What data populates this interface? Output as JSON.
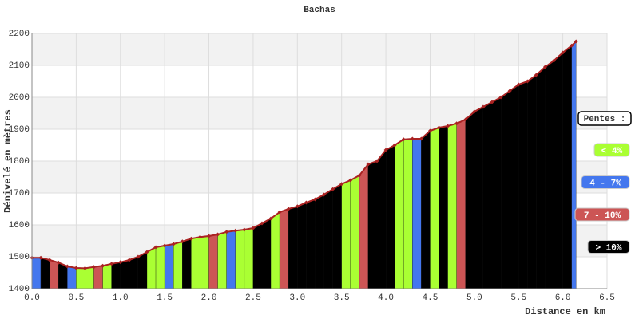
{
  "chart_data": {
    "type": "area-profile",
    "title": "Bachas",
    "x_label": "Distance en km",
    "y_label": "Dénivelé en mètres",
    "x": [
      0.0,
      0.1,
      0.2,
      0.3,
      0.4,
      0.5,
      0.6,
      0.7,
      0.8,
      0.9,
      1.0,
      1.1,
      1.2,
      1.3,
      1.4,
      1.5,
      1.6,
      1.7,
      1.8,
      1.9,
      2.0,
      2.1,
      2.2,
      2.3,
      2.4,
      2.5,
      2.6,
      2.7,
      2.8,
      2.9,
      3.0,
      3.1,
      3.2,
      3.3,
      3.4,
      3.5,
      3.6,
      3.7,
      3.8,
      3.9,
      4.0,
      4.1,
      4.2,
      4.3,
      4.4,
      4.5,
      4.6,
      4.7,
      4.8,
      4.9,
      5.0,
      5.1,
      5.2,
      5.3,
      5.4,
      5.5,
      5.6,
      5.7,
      5.8,
      5.9,
      6.0,
      6.1,
      6.15
    ],
    "values": [
      1497,
      1497,
      1490,
      1482,
      1470,
      1465,
      1464,
      1468,
      1472,
      1478,
      1483,
      1490,
      1500,
      1515,
      1530,
      1535,
      1540,
      1548,
      1557,
      1562,
      1565,
      1570,
      1578,
      1582,
      1585,
      1590,
      1605,
      1620,
      1640,
      1650,
      1658,
      1670,
      1680,
      1695,
      1712,
      1728,
      1740,
      1755,
      1790,
      1800,
      1835,
      1850,
      1868,
      1870,
      1870,
      1895,
      1905,
      1910,
      1918,
      1930,
      1955,
      1970,
      1985,
      2000,
      2020,
      2040,
      2050,
      2070,
      2095,
      2115,
      2140,
      2162,
      2175
    ],
    "segment_colors": [
      "#4477ee",
      "#000000",
      "#cc5555",
      "#000000",
      "#4477ee",
      "#aaff33",
      "#aaff33",
      "#cc5555",
      "#aaff33",
      "#000000",
      "#000000",
      "#000000",
      "#000000",
      "#aaff33",
      "#aaff33",
      "#4477ee",
      "#aaff33",
      "#000000",
      "#aaff33",
      "#aaff33",
      "#cc5555",
      "#aaff33",
      "#4477ee",
      "#aaff33",
      "#aaff33",
      "#000000",
      "#000000",
      "#aaff33",
      "#cc5555",
      "#000000",
      "#000000",
      "#000000",
      "#000000",
      "#000000",
      "#000000",
      "#aaff33",
      "#aaff33",
      "#cc5555",
      "#000000",
      "#000000",
      "#000000",
      "#aaff33",
      "#aaff33",
      "#4477ee",
      "#000000",
      "#aaff33",
      "#000000",
      "#aaff33",
      "#cc5555",
      "#000000",
      "#000000",
      "#000000",
      "#000000",
      "#000000",
      "#000000",
      "#000000",
      "#000000",
      "#000000",
      "#000000",
      "#000000",
      "#000000",
      "#4477ee"
    ],
    "line_color": "#aa2222",
    "xlim": [
      0,
      6.5
    ],
    "ylim": [
      1400,
      2200
    ],
    "xticks": [
      {
        "value": 0,
        "label": "0.0"
      },
      0.5,
      {
        "value": 1,
        "label": "1.0"
      },
      1.5,
      {
        "value": 2,
        "label": "2.0"
      },
      2.5,
      {
        "value": 3,
        "label": "3.0"
      },
      3.5,
      {
        "value": 4,
        "label": "4.0"
      },
      4.5,
      {
        "value": 5,
        "label": "5.0"
      },
      5.5,
      {
        "value": 6,
        "label": "6.0"
      },
      6.5
    ],
    "yticks": [
      1400,
      1500,
      1600,
      1700,
      1800,
      1900,
      2000,
      2100,
      2200
    ],
    "grid": true,
    "legend_title": "Pentes :",
    "legend": [
      {
        "name": "< 4%",
        "color": "#aaff33"
      },
      {
        "name": "4 - 7%",
        "color": "#4477ee"
      },
      {
        "name": "7 - 10%",
        "color": "#cc5555"
      },
      {
        "name": "> 10%",
        "color": "#000000"
      }
    ]
  }
}
